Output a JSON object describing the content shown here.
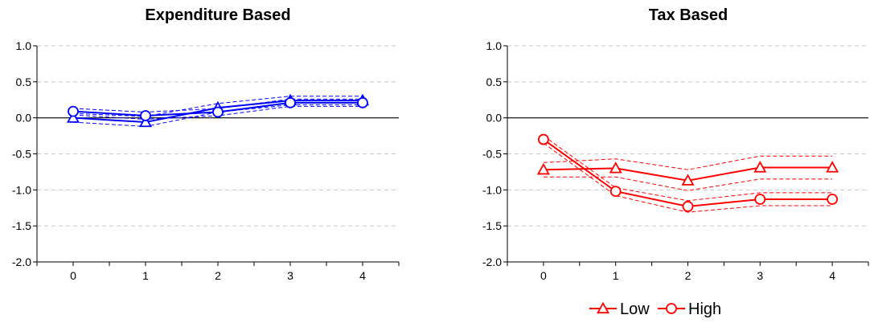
{
  "chart_data": [
    {
      "type": "line",
      "title": "Expenditure Based",
      "xlabel": "",
      "ylabel": "",
      "x": [
        0,
        1,
        2,
        3,
        4
      ],
      "xlim": [
        -0.5,
        4.5
      ],
      "ylim": [
        -2.0,
        1.0
      ],
      "yticks": [
        "1.0",
        "0.5",
        "0.0",
        "-0.5",
        "-1.0",
        "-1.5",
        "-2.0"
      ],
      "xticks": [
        "0",
        "1",
        "2",
        "3",
        "4"
      ],
      "grid": "horizontal-dashed",
      "zero_line": true,
      "color": "#0000ff",
      "series": [
        {
          "name": "Low",
          "marker": "triangle",
          "values": [
            0.0,
            -0.06,
            0.14,
            0.24,
            0.24
          ],
          "upper": [
            0.06,
            0.02,
            0.2,
            0.3,
            0.3
          ],
          "lower": [
            -0.06,
            -0.12,
            0.08,
            0.18,
            0.18
          ]
        },
        {
          "name": "High",
          "marker": "circle",
          "values": [
            0.09,
            0.03,
            0.08,
            0.21,
            0.21
          ],
          "upper": [
            0.13,
            0.08,
            0.13,
            0.26,
            0.26
          ],
          "lower": [
            0.04,
            -0.02,
            0.03,
            0.16,
            0.16
          ]
        }
      ]
    },
    {
      "type": "line",
      "title": "Tax Based",
      "xlabel": "",
      "ylabel": "",
      "x": [
        0,
        1,
        2,
        3,
        4
      ],
      "xlim": [
        -0.5,
        4.5
      ],
      "ylim": [
        -2.0,
        1.0
      ],
      "yticks": [
        "1.0",
        "0.5",
        "0.0",
        "-0.5",
        "-1.0",
        "-1.5",
        "-2.0"
      ],
      "xticks": [
        "0",
        "1",
        "2",
        "3",
        "4"
      ],
      "grid": "horizontal-dashed",
      "zero_line": true,
      "color": "#ff0000",
      "series": [
        {
          "name": "Low",
          "marker": "triangle",
          "values": [
            -0.72,
            -0.7,
            -0.87,
            -0.69,
            -0.69
          ],
          "upper": [
            -0.62,
            -0.57,
            -0.72,
            -0.53,
            -0.53
          ],
          "lower": [
            -0.82,
            -0.82,
            -1.01,
            -0.85,
            -0.85
          ]
        },
        {
          "name": "High",
          "marker": "circle",
          "values": [
            -0.3,
            -1.02,
            -1.23,
            -1.13,
            -1.13
          ],
          "upper": [
            -0.25,
            -0.97,
            -1.15,
            -1.04,
            -1.04
          ],
          "lower": [
            -0.35,
            -1.08,
            -1.31,
            -1.22,
            -1.22
          ]
        }
      ]
    }
  ],
  "legend": {
    "placement": "bottom-right",
    "items": [
      {
        "label": "Low",
        "marker": "triangle"
      },
      {
        "label": "High",
        "marker": "circle"
      }
    ]
  }
}
